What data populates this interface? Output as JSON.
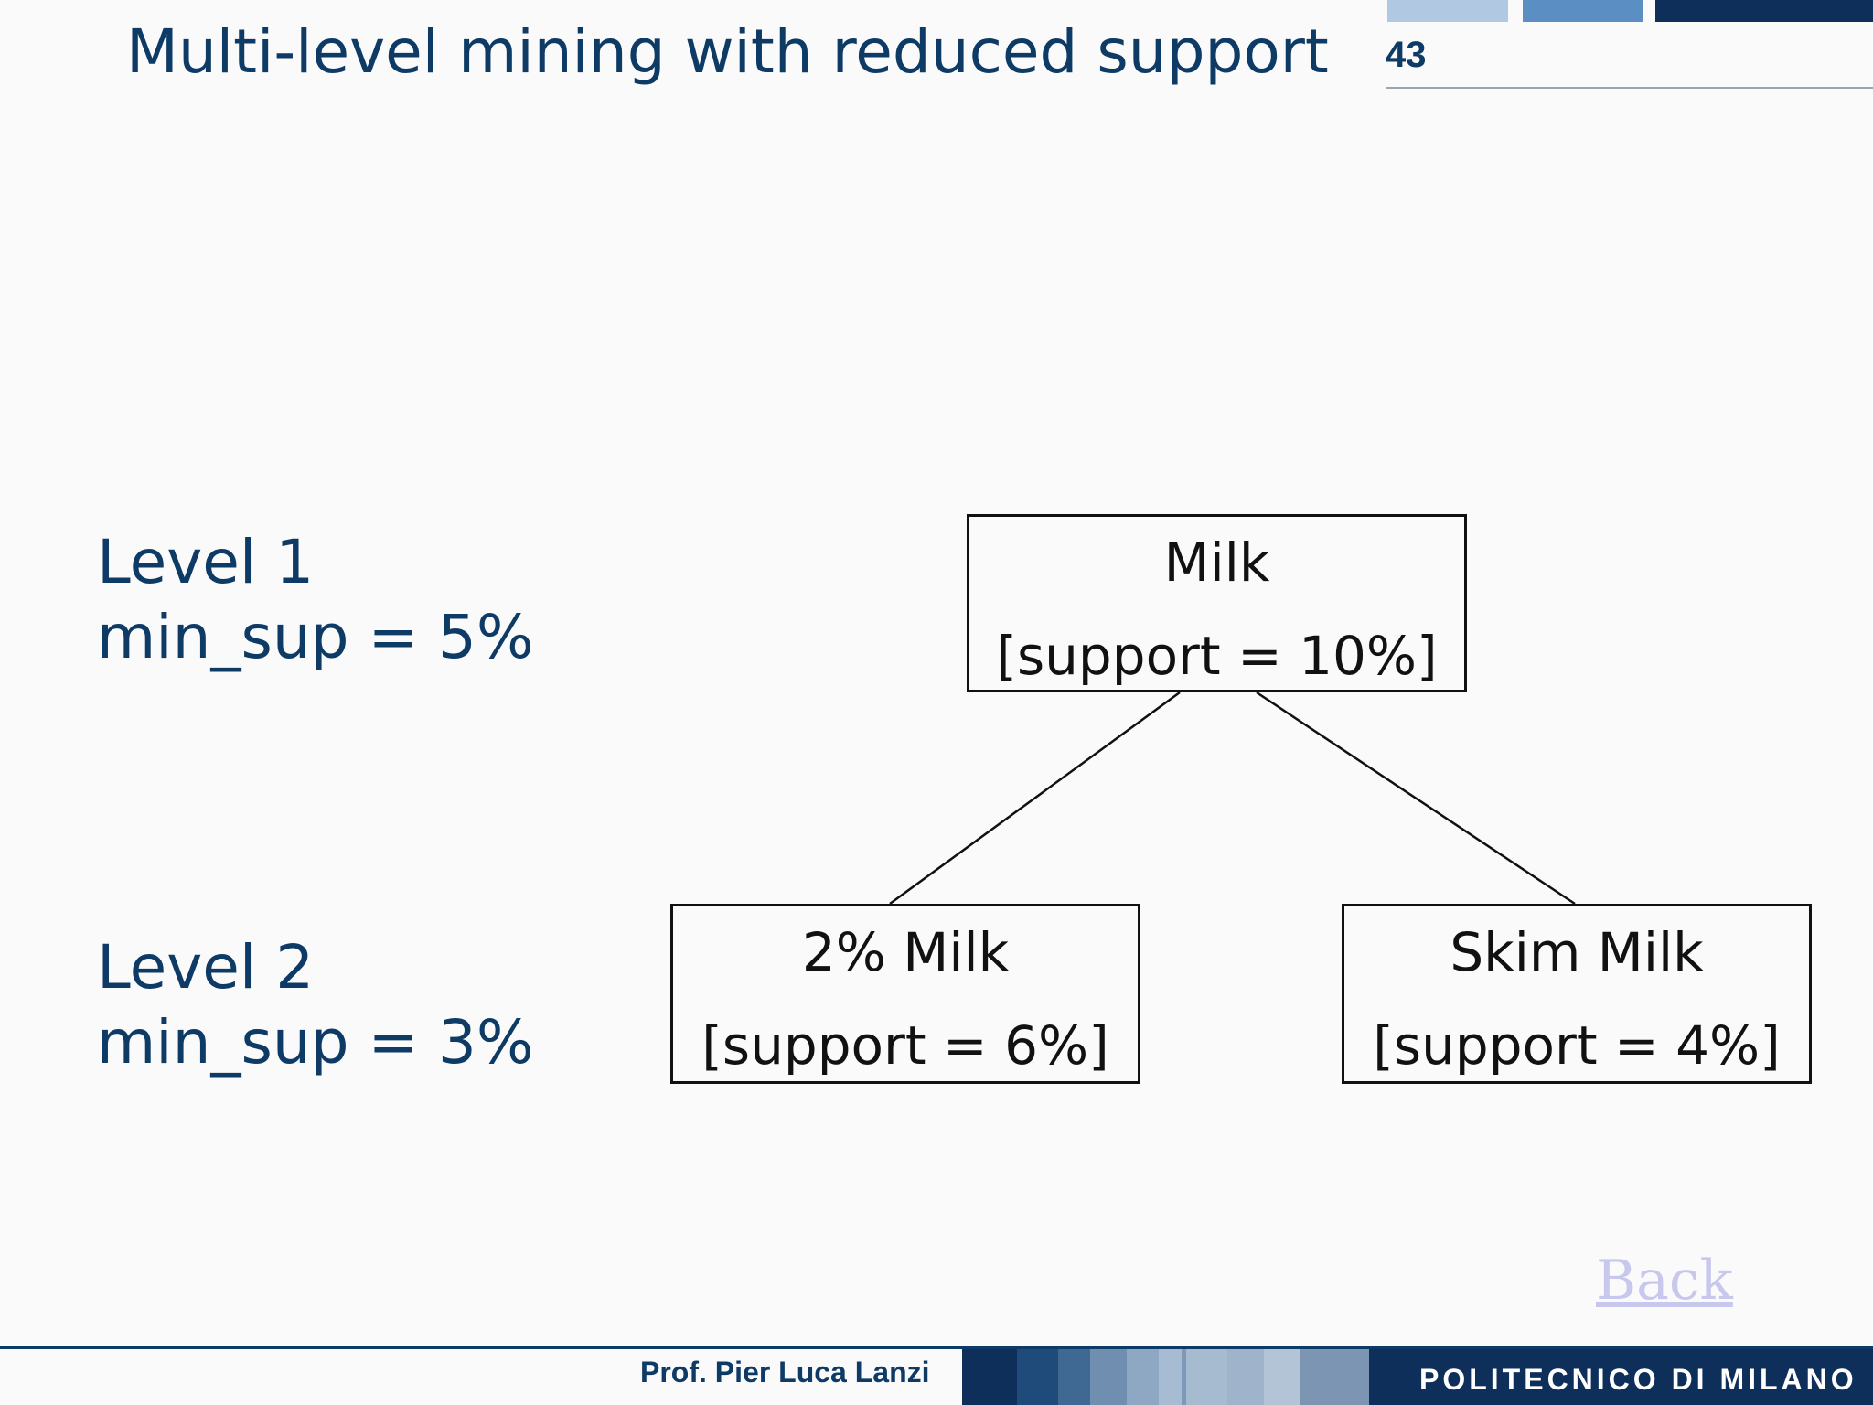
{
  "slide": {
    "title": "Multi-level mining with reduced support",
    "number": "43"
  },
  "levels": [
    {
      "label": "Level 1",
      "min_sup": "min_sup = 5%"
    },
    {
      "label": "Level 2",
      "min_sup": "min_sup = 3%"
    }
  ],
  "tree": {
    "root": {
      "name": "Milk",
      "support": "[support = 10%]"
    },
    "children": [
      {
        "name": "2% Milk",
        "support": "[support = 6%]"
      },
      {
        "name": "Skim Milk",
        "support": "[support = 4%]"
      }
    ]
  },
  "back_link": "Back",
  "footer": {
    "author": "Prof. Pier Luca Lanzi",
    "institution": "POLITECNICO DI MILANO"
  },
  "colors": {
    "title": "#0e3a66",
    "accent_dark": "#0f2f5b",
    "link": "#c8c8ee"
  }
}
